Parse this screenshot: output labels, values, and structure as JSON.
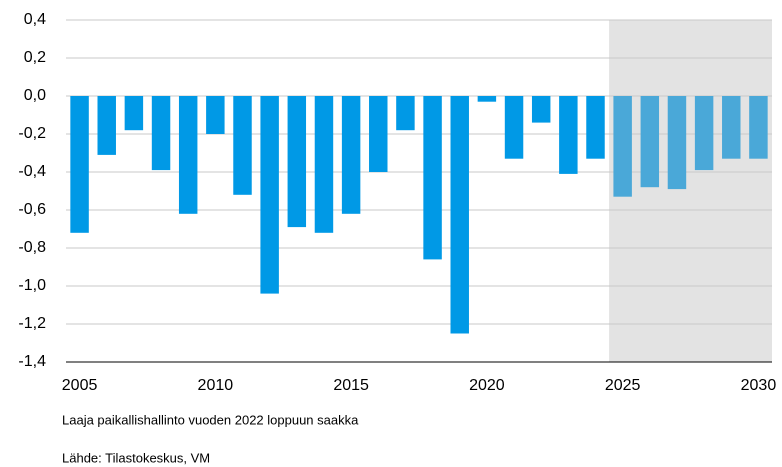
{
  "chart_data": {
    "type": "bar",
    "categories": [
      "2005",
      null,
      null,
      null,
      null,
      "2010",
      null,
      null,
      null,
      null,
      "2015",
      null,
      null,
      null,
      null,
      "2020",
      null,
      null,
      null,
      null,
      "2025",
      null,
      null,
      null,
      null,
      "2030"
    ],
    "values": [
      -0.72,
      -0.31,
      -0.18,
      -0.39,
      -0.62,
      -0.2,
      -0.52,
      -1.04,
      -0.69,
      -0.72,
      -0.62,
      -0.4,
      -0.18,
      -0.86,
      -1.25,
      -0.03,
      -0.33,
      -0.14,
      -0.41,
      -0.33,
      -0.53,
      -0.48,
      -0.49,
      -0.39,
      -0.33,
      -0.33
    ],
    "colors": [
      "#0099e6",
      "#0099e6",
      "#0099e6",
      "#0099e6",
      "#0099e6",
      "#0099e6",
      "#0099e6",
      "#0099e6",
      "#0099e6",
      "#0099e6",
      "#0099e6",
      "#0099e6",
      "#0099e6",
      "#0099e6",
      "#0099e6",
      "#0099e6",
      "#0099e6",
      "#0099e6",
      "#0099e6",
      "#0099e6",
      "#4aa8d8",
      "#4aa8d8",
      "#4aa8d8",
      "#4aa8d8",
      "#4aa8d8",
      "#4aa8d8"
    ],
    "shade_color": "#e3e3e3",
    "ylim": [
      -1.4,
      0.4
    ],
    "yticks": [
      {
        "value": -1.4,
        "label": "-1,4"
      },
      {
        "value": -1.2,
        "label": "-1,2"
      },
      {
        "value": -1.0,
        "label": "-1,0"
      },
      {
        "value": -0.8,
        "label": "-0,8"
      },
      {
        "value": -0.6,
        "label": "-0,6"
      },
      {
        "value": -0.4,
        "label": "-0,4"
      },
      {
        "value": -0.2,
        "label": "-0,2"
      },
      {
        "value": 0,
        "label": "0,0"
      },
      {
        "value": 0.2,
        "label": "0,2"
      },
      {
        "value": 0.4,
        "label": "0,4"
      }
    ],
    "grid": true,
    "notes": [
      "Laaja paikallishallinto  vuoden 2022 loppuun  saakka",
      "Lähde: Tilastokeskus, VM"
    ]
  }
}
